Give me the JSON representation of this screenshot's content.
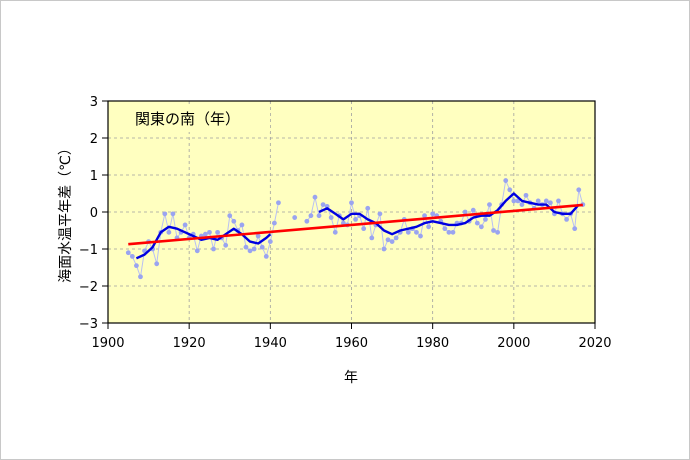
{
  "chart_data": {
    "type": "line",
    "title": "関東の南（年）",
    "xlabel": "年",
    "ylabel": "海面水温平年差（℃）",
    "xlim": [
      1900,
      2020
    ],
    "ylim": [
      -3,
      3
    ],
    "xticks": [
      "1900",
      "1920",
      "1940",
      "1960",
      "1980",
      "2000",
      "2020"
    ],
    "yticks": [
      "3",
      "2",
      "1",
      "0",
      "−1",
      "−2",
      "−3"
    ],
    "grid": true,
    "colors": {
      "plot_background": "#ffffc0",
      "annual": "#9aa4f0",
      "running_mean": "#0000e0",
      "trend": "#ff0000",
      "grid": "#a0a0a0"
    },
    "series": [
      {
        "role": "annual",
        "x": [
          1905,
          1906,
          1907,
          1908,
          1909,
          1910,
          1911,
          1912,
          1913,
          1914,
          1915,
          1916,
          1917,
          1918,
          1919,
          1920,
          1921,
          1922,
          1923,
          1924,
          1925,
          1926,
          1927,
          1928,
          1929,
          1930,
          1931,
          1932,
          1933,
          1934,
          1935,
          1936,
          1937,
          1938,
          1939,
          1940,
          1941,
          1942,
          1946,
          1949,
          1950,
          1951,
          1952,
          1953,
          1954,
          1955,
          1956,
          1957,
          1958,
          1959,
          1960,
          1961,
          1962,
          1963,
          1964,
          1965,
          1966,
          1967,
          1968,
          1969,
          1970,
          1971,
          1972,
          1973,
          1974,
          1975,
          1976,
          1977,
          1978,
          1979,
          1980,
          1981,
          1982,
          1983,
          1984,
          1985,
          1986,
          1987,
          1988,
          1989,
          1990,
          1991,
          1992,
          1993,
          1994,
          1995,
          1996,
          1997,
          1998,
          1999,
          2000,
          2001,
          2002,
          2003,
          2004,
          2005,
          2006,
          2007,
          2008,
          2009,
          2010,
          2011,
          2012,
          2013,
          2014,
          2015,
          2016,
          2017
        ],
        "y": [
          -1.1,
          -1.2,
          -1.45,
          -1.75,
          -1.05,
          -0.8,
          -1.0,
          -1.4,
          -0.55,
          -0.05,
          -0.55,
          -0.05,
          -0.7,
          -0.55,
          -0.35,
          -0.7,
          -0.6,
          -1.05,
          -0.65,
          -0.6,
          -0.55,
          -1.0,
          -0.55,
          -0.7,
          -0.9,
          -0.1,
          -0.25,
          -0.5,
          -0.35,
          -0.95,
          -1.05,
          -1.0,
          -0.65,
          -0.95,
          -1.2,
          -0.8,
          -0.3,
          0.25,
          -0.15,
          -0.25,
          -0.1,
          0.4,
          -0.1,
          0.2,
          0.15,
          -0.15,
          -0.55,
          -0.1,
          -0.3,
          -0.35,
          0.25,
          -0.2,
          -0.1,
          -0.45,
          0.1,
          -0.7,
          -0.35,
          -0.05,
          -1.0,
          -0.75,
          -0.8,
          -0.7,
          -0.55,
          -0.2,
          -0.55,
          -0.45,
          -0.55,
          -0.65,
          -0.1,
          -0.4,
          -0.05,
          -0.1,
          -0.25,
          -0.45,
          -0.55,
          -0.55,
          -0.3,
          -0.3,
          0.0,
          -0.25,
          0.05,
          -0.3,
          -0.4,
          -0.2,
          0.2,
          -0.5,
          -0.55,
          0.2,
          0.85,
          0.6,
          0.3,
          0.3,
          0.2,
          0.45,
          0.25,
          0.1,
          0.3,
          0.2,
          0.3,
          0.25,
          -0.05,
          0.3,
          -0.05,
          -0.2,
          -0.05,
          -0.45,
          0.6,
          0.2
        ]
      },
      {
        "role": "running_mean",
        "x": [
          1907,
          1909,
          1911,
          1913,
          1915,
          1917,
          1919,
          1921,
          1923,
          1925,
          1927,
          1929,
          1931,
          1933,
          1935,
          1937,
          1939,
          1940,
          1952,
          1954,
          1956,
          1958,
          1960,
          1962,
          1964,
          1966,
          1968,
          1970,
          1972,
          1974,
          1976,
          1978,
          1980,
          1982,
          1984,
          1986,
          1988,
          1990,
          1992,
          1994,
          1996,
          1998,
          2000,
          2002,
          2004,
          2006,
          2008,
          2010,
          2012,
          2014,
          2016
        ],
        "y": [
          -1.25,
          -1.15,
          -0.95,
          -0.55,
          -0.4,
          -0.45,
          -0.55,
          -0.65,
          -0.75,
          -0.7,
          -0.75,
          -0.6,
          -0.45,
          -0.6,
          -0.8,
          -0.85,
          -0.7,
          -0.6,
          0.0,
          0.1,
          -0.05,
          -0.2,
          -0.05,
          -0.05,
          -0.2,
          -0.3,
          -0.5,
          -0.6,
          -0.5,
          -0.45,
          -0.4,
          -0.3,
          -0.25,
          -0.3,
          -0.35,
          -0.35,
          -0.3,
          -0.15,
          -0.1,
          -0.1,
          0.05,
          0.3,
          0.5,
          0.3,
          0.25,
          0.2,
          0.2,
          0.0,
          -0.05,
          -0.05,
          0.2
        ]
      },
      {
        "role": "trend",
        "x": [
          1905,
          2017
        ],
        "y": [
          -0.87,
          0.19
        ]
      }
    ]
  }
}
